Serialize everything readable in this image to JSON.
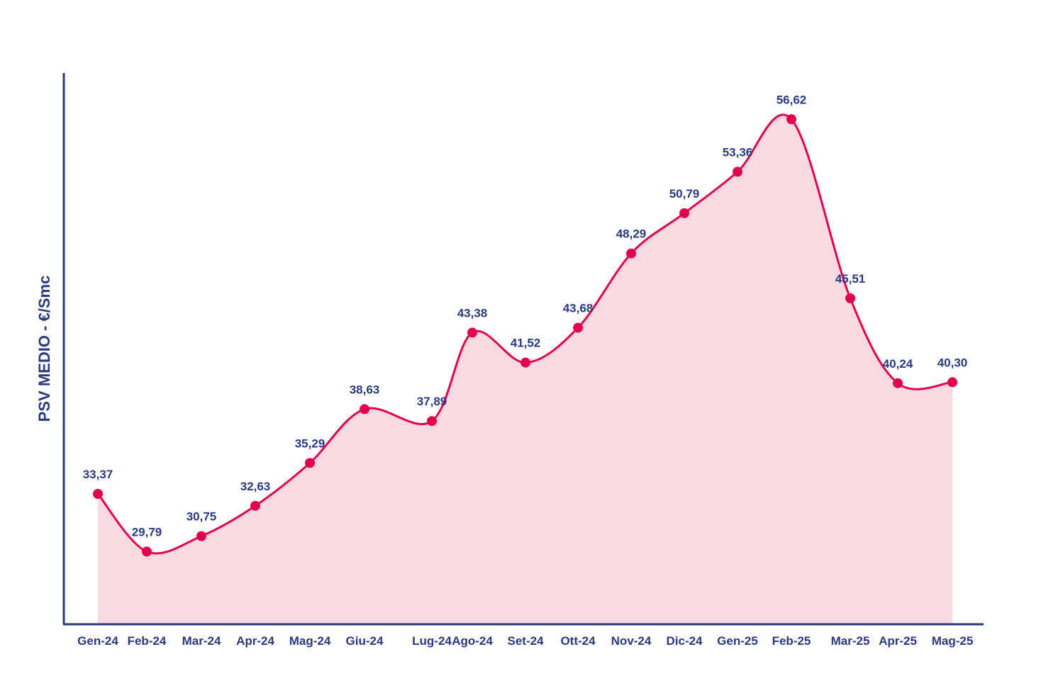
{
  "chart_data": {
    "type": "area",
    "ylabel": "PSV MEDIO - €/Smc",
    "categories": [
      "Gen-24",
      "Feb-24",
      "Mar-24",
      "Apr-24",
      "Mag-24",
      "Giu-24",
      "Lug-24",
      "Ago-24",
      "Set-24",
      "Ott-24",
      "Nov-24",
      "Dic-24",
      "Gen-25",
      "Feb-25",
      "Mar-25",
      "Apr-25",
      "Mag-25"
    ],
    "values": [
      33.37,
      29.79,
      30.75,
      32.63,
      35.29,
      38.63,
      37.89,
      43.38,
      41.52,
      43.68,
      48.29,
      50.79,
      53.36,
      56.62,
      45.51,
      40.24,
      40.3
    ],
    "value_labels": [
      "33,37",
      "29,79",
      "30,75",
      "32,63",
      "35,29",
      "38,63",
      "37,89",
      "43,38",
      "41,52",
      "43,68",
      "48,29",
      "50,79",
      "53,36",
      "56,62",
      "45,51",
      "40,24",
      "40,30"
    ],
    "colors": {
      "line": "#e3004f",
      "fill": "#f9d9e2",
      "axis": "#2b3a7c",
      "text": "#2b3a7c"
    },
    "grid": false,
    "legend": "none"
  }
}
